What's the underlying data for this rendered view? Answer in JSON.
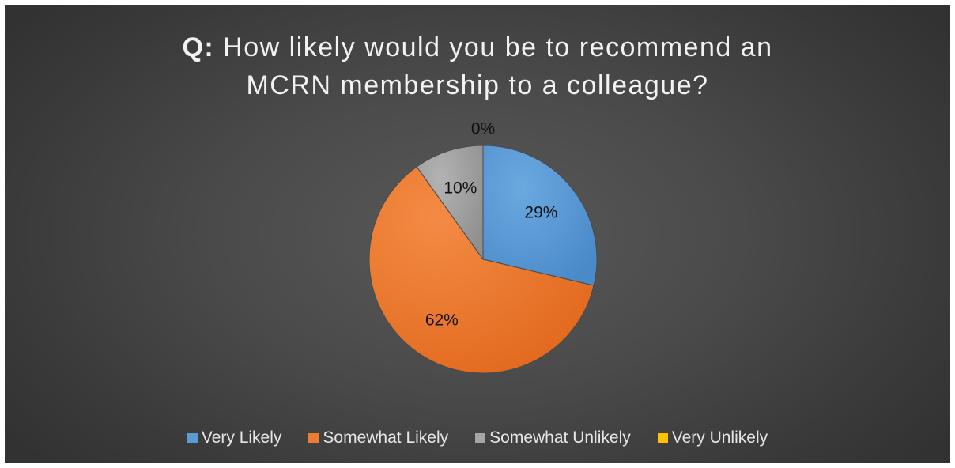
{
  "title": {
    "prefix": "Q:",
    "line1": "How likely would you be to recommend an",
    "line2": "MCRN membership to a colleague?"
  },
  "chart_data": {
    "type": "pie",
    "title": "Q: How likely would you be to recommend an MCRN membership to a colleague?",
    "categories": [
      "Very Likely",
      "Somewhat Likely",
      "Somewhat Unlikely",
      "Very Unlikely"
    ],
    "values": [
      29,
      62,
      10,
      0
    ],
    "data_labels": [
      "29%",
      "62%",
      "10%",
      "0%"
    ],
    "colors": [
      "#5b9bd5",
      "#ed7d31",
      "#a5a5a5",
      "#ffc000"
    ],
    "legend_position": "bottom"
  }
}
